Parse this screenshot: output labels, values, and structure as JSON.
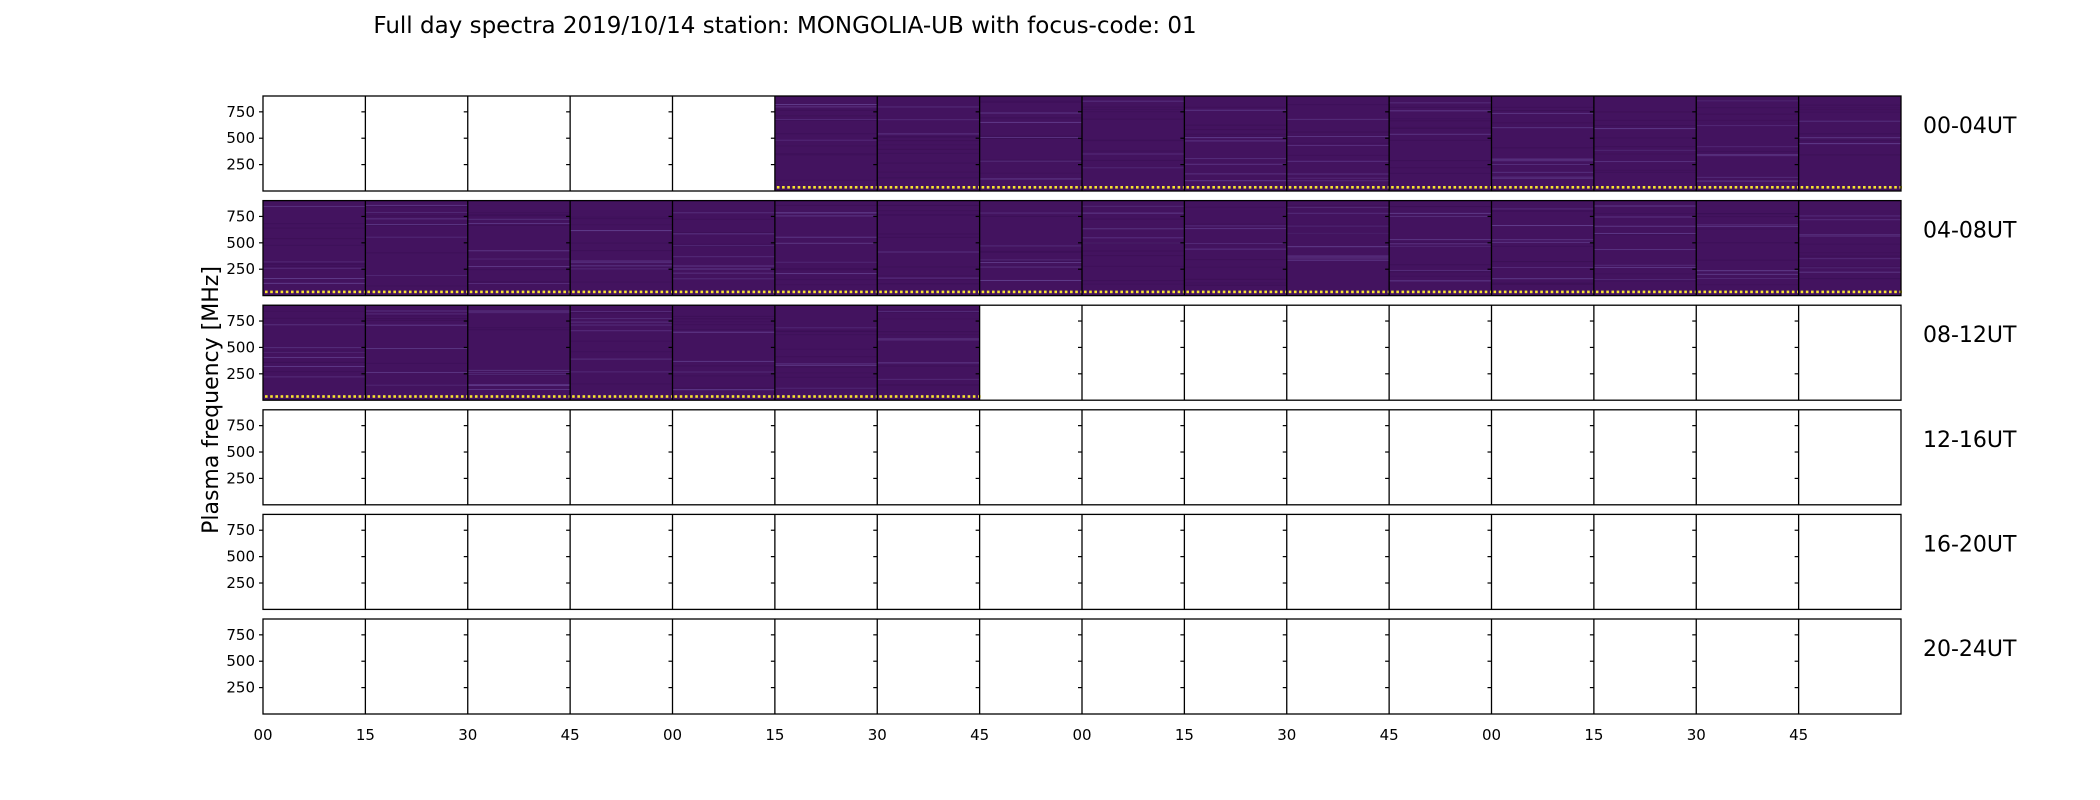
{
  "chart_data": {
    "type": "heatmap",
    "title": "Full day spectra 2019/10/14 station: MONGOLIA-UB with focus-code: 01",
    "ylabel": "Plasma frequency [MHz]",
    "xlabel": "",
    "ylim": [
      0,
      900
    ],
    "y_ticks": [
      750,
      500,
      250
    ],
    "x_tick_labels": [
      "00",
      "15",
      "30",
      "45",
      "00",
      "15",
      "30",
      "45",
      "00",
      "15",
      "30",
      "45",
      "00",
      "15",
      "30",
      "45"
    ],
    "panels_per_row": 16,
    "minutes_per_panel": 15,
    "rows": [
      {
        "label": "00-04UT",
        "has_data": [
          false,
          false,
          false,
          false,
          false,
          true,
          true,
          true,
          true,
          true,
          true,
          true,
          true,
          true,
          true,
          true
        ]
      },
      {
        "label": "04-08UT",
        "has_data": [
          true,
          true,
          true,
          true,
          true,
          true,
          true,
          true,
          true,
          true,
          true,
          true,
          true,
          true,
          true,
          true
        ]
      },
      {
        "label": "08-12UT",
        "has_data": [
          true,
          true,
          true,
          true,
          true,
          true,
          true,
          false,
          false,
          false,
          false,
          false,
          false,
          false,
          false,
          false
        ]
      },
      {
        "label": "12-16UT",
        "has_data": [
          false,
          false,
          false,
          false,
          false,
          false,
          false,
          false,
          false,
          false,
          false,
          false,
          false,
          false,
          false,
          false
        ]
      },
      {
        "label": "16-20UT",
        "has_data": [
          false,
          false,
          false,
          false,
          false,
          false,
          false,
          false,
          false,
          false,
          false,
          false,
          false,
          false,
          false,
          false
        ]
      },
      {
        "label": "20-24UT",
        "has_data": [
          false,
          false,
          false,
          false,
          false,
          false,
          false,
          false,
          false,
          false,
          false,
          false,
          false,
          false,
          false,
          false
        ]
      }
    ],
    "colors": {
      "spectrum_background": "#43135f",
      "spectrum_dark": "#3a0f54",
      "spectrum_line": "#6a4a9a",
      "baseline_dots": "#f7e330",
      "frame": "#000000"
    }
  }
}
